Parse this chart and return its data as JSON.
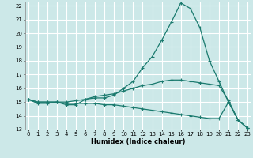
{
  "title": "",
  "xlabel": "Humidex (Indice chaleur)",
  "ylabel": "",
  "background_color": "#cce8e8",
  "grid_color": "#ffffff",
  "line_color": "#1a7a6e",
  "x": [
    0,
    1,
    2,
    3,
    4,
    5,
    6,
    7,
    8,
    9,
    10,
    11,
    12,
    13,
    14,
    15,
    16,
    17,
    18,
    19,
    20,
    21,
    22,
    23
  ],
  "line1": [
    15.2,
    14.9,
    14.9,
    15.0,
    14.8,
    14.8,
    15.2,
    15.3,
    15.3,
    15.5,
    16.0,
    16.5,
    17.5,
    18.3,
    19.5,
    20.8,
    22.2,
    21.8,
    20.4,
    18.0,
    16.5,
    15.0,
    13.7,
    13.1
  ],
  "line2": [
    15.2,
    15.0,
    15.0,
    15.0,
    15.0,
    15.1,
    15.2,
    15.4,
    15.5,
    15.6,
    15.8,
    16.0,
    16.2,
    16.3,
    16.5,
    16.6,
    16.6,
    16.5,
    16.4,
    16.3,
    16.2,
    15.1,
    13.7,
    13.1
  ],
  "line3": [
    15.2,
    15.0,
    15.0,
    15.0,
    14.9,
    14.9,
    14.9,
    14.9,
    14.8,
    14.8,
    14.7,
    14.6,
    14.5,
    14.4,
    14.3,
    14.2,
    14.1,
    14.0,
    13.9,
    13.8,
    13.8,
    15.0,
    13.7,
    13.1
  ],
  "xlim": [
    0,
    23
  ],
  "ylim": [
    13,
    22.3
  ],
  "yticks": [
    13,
    14,
    15,
    16,
    17,
    18,
    19,
    20,
    21,
    22
  ],
  "xticks": [
    0,
    1,
    2,
    3,
    4,
    5,
    6,
    7,
    8,
    9,
    10,
    11,
    12,
    13,
    14,
    15,
    16,
    17,
    18,
    19,
    20,
    21,
    22,
    23
  ],
  "tick_fontsize": 5,
  "xlabel_fontsize": 6
}
